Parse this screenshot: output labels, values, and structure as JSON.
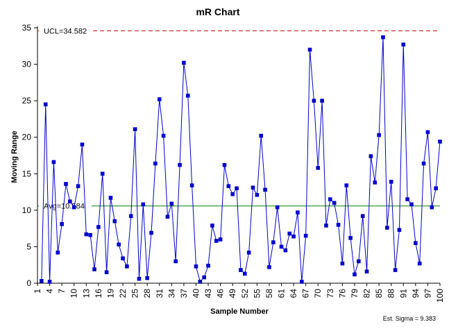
{
  "chart_data": {
    "type": "line",
    "title": "mR Chart",
    "xlabel": "Sample Number",
    "ylabel": "Moving Range",
    "ylim": [
      0,
      35
    ],
    "yticks": [
      0,
      5,
      10,
      15,
      20,
      25,
      30,
      35
    ],
    "xlim": [
      1,
      100
    ],
    "xticks": [
      1,
      4,
      7,
      10,
      13,
      16,
      19,
      22,
      25,
      28,
      31,
      34,
      37,
      40,
      43,
      46,
      49,
      52,
      55,
      58,
      61,
      64,
      67,
      70,
      73,
      76,
      79,
      82,
      85,
      88,
      91,
      94,
      97,
      100
    ],
    "grid": false,
    "legend": "none",
    "ucl": {
      "value": 34.582,
      "label": "UCL=34.582",
      "color": "#c00000"
    },
    "avg": {
      "value": 10.584,
      "label": "Avg=10.584",
      "color": "#008000"
    },
    "series": [
      {
        "color": "#0000cc",
        "x": [
          2,
          3,
          4,
          5,
          6,
          7,
          8,
          9,
          10,
          11,
          12,
          13,
          14,
          15,
          16,
          17,
          18,
          19,
          20,
          21,
          22,
          23,
          24,
          25,
          26,
          27,
          28,
          29,
          30,
          31,
          32,
          33,
          34,
          35,
          36,
          37,
          38,
          39,
          40,
          41,
          42,
          43,
          44,
          45,
          46,
          47,
          48,
          49,
          50,
          51,
          52,
          53,
          54,
          55,
          56,
          57,
          58,
          59,
          60,
          61,
          62,
          63,
          64,
          65,
          66,
          67,
          68,
          69,
          70,
          71,
          72,
          73,
          74,
          75,
          76,
          77,
          78,
          79,
          80,
          81,
          82,
          83,
          84,
          85,
          86,
          87,
          88,
          89,
          90,
          91,
          92,
          93,
          94,
          95,
          96,
          97,
          98,
          99,
          100
        ],
        "values": [
          0.3,
          24.5,
          0.2,
          16.6,
          4.2,
          8.1,
          13.6,
          11.2,
          10.4,
          13.3,
          19.0,
          6.7,
          6.6,
          1.9,
          7.7,
          15.0,
          1.5,
          11.7,
          8.5,
          5.3,
          3.4,
          2.3,
          9.2,
          21.1,
          0.6,
          10.8,
          0.7,
          6.9,
          16.4,
          25.2,
          20.2,
          9.1,
          10.9,
          3.0,
          16.2,
          30.2,
          25.7,
          13.4,
          2.3,
          0.2,
          0.8,
          2.4,
          7.9,
          5.8,
          6.0,
          16.2,
          13.3,
          12.2,
          13.0,
          1.8,
          1.3,
          4.2,
          13.1,
          12.1,
          20.2,
          12.8,
          2.2,
          5.6,
          10.4,
          5.0,
          4.5,
          6.8,
          6.4,
          9.7,
          0.2,
          6.5,
          32.0,
          25.0,
          15.8,
          25.0,
          7.9,
          11.5,
          11.0,
          8.0,
          2.7,
          13.4,
          6.2,
          1.2,
          3.0,
          9.2,
          1.6,
          17.4,
          13.8,
          20.3,
          33.7,
          7.6,
          13.9,
          1.8,
          7.3,
          32.7,
          11.5,
          10.8,
          5.5,
          2.7,
          16.4,
          20.7,
          10.4,
          13.0,
          19.4
        ]
      }
    ]
  },
  "footer": {
    "est_sigma": "Est. Sigma = 9.383"
  }
}
